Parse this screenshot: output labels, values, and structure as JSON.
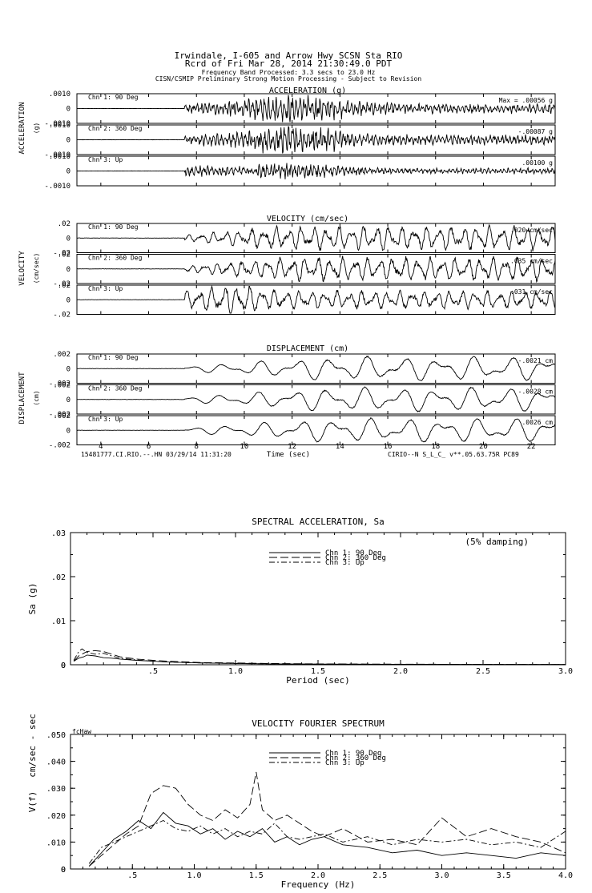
{
  "header": {
    "line1": "Irwindale, I-605 and Arrow Hwy    SCSN Sta RIO",
    "line2": "Rcrd of Fri Mar 28, 2014 21:30:49.0 PDT",
    "line3": "Frequency Band Processed: 3.3 secs to 23.0 Hz",
    "line4": "CISN/CSMIP Preliminary Strong Motion Processing - Subject to Revision"
  },
  "time_axis": {
    "label": "Time (sec)",
    "ticks": [
      "4",
      "6",
      "8",
      "10",
      "12",
      "14",
      "16",
      "18",
      "20",
      "22"
    ],
    "footer_left": "15481777.CI.RIO.--.HN 03/29/14 11:31:20",
    "footer_right": "CIRIO--N  S_L_C_  v**.05.63.75R PC89"
  },
  "chart_data": [
    {
      "type": "line",
      "id": "acceleration",
      "title": "ACCELERATION (g)",
      "side_label": "ACCELERATION",
      "unit_label": "(g)",
      "x_range": [
        3,
        23
      ],
      "channels": [
        {
          "name": "Chn 1: 90 Deg",
          "max_text": "Max =    .00056    g",
          "ticks": [
            ".0010",
            "0",
            "-.0010"
          ],
          "ylim": [
            -0.001,
            0.001
          ],
          "peak": 0.00056
        },
        {
          "name": "Chn 2: 360 Deg",
          "max_text": "-.00087    g",
          "ticks": [
            ".0010",
            "0",
            "-.0010"
          ],
          "ylim": [
            -0.001,
            0.001
          ],
          "peak": 0.00087
        },
        {
          "name": "Chn 3: Up",
          "max_text": ".00100    g",
          "ticks": [
            ".0010",
            "0",
            "-.0010"
          ],
          "ylim": [
            -0.001,
            0.001
          ],
          "peak": 0.001
        }
      ]
    },
    {
      "type": "line",
      "id": "velocity",
      "title": "VELOCITY (cm/sec)",
      "side_label": "VELOCITY",
      "unit_label": "(cm/sec)",
      "x_range": [
        3,
        23
      ],
      "channels": [
        {
          "name": "Chn 1: 90 Deg",
          "max_text": ".020   cm/sec",
          "ticks": [
            ".02",
            "0",
            "-.02"
          ],
          "ylim": [
            -0.02,
            0.02
          ],
          "peak": 0.02
        },
        {
          "name": "Chn 2: 360 Deg",
          "max_text": ".035   cm/sec",
          "ticks": [
            ".02",
            "0",
            "-.02"
          ],
          "ylim": [
            -0.02,
            0.02
          ],
          "peak": 0.035
        },
        {
          "name": "Chn 3: Up",
          "max_text": ".031   cm/sec",
          "ticks": [
            ".02",
            "0",
            "-.02"
          ],
          "ylim": [
            -0.02,
            0.02
          ],
          "peak": 0.031
        }
      ]
    },
    {
      "type": "line",
      "id": "displacement",
      "title": "DISPLACEMENT (cm)",
      "side_label": "DISPLACEMENT",
      "unit_label": "(cm)",
      "x_range": [
        3,
        23
      ],
      "channels": [
        {
          "name": "Chn 1: 90 Deg",
          "max_text": "-.0021    cm",
          "ticks": [
            ".002",
            "0",
            "-.002"
          ],
          "ylim": [
            -0.002,
            0.002
          ],
          "peak": 0.0021
        },
        {
          "name": "Chn 2: 360 Deg",
          "max_text": "-.0028    cm",
          "ticks": [
            ".002",
            "0",
            "-.002"
          ],
          "ylim": [
            -0.002,
            0.002
          ],
          "peak": 0.0028
        },
        {
          "name": "Chn 3: Up",
          "max_text": ".0026    cm",
          "ticks": [
            ".002",
            "0",
            "-.002"
          ],
          "ylim": [
            -0.002,
            0.002
          ],
          "peak": 0.0026
        }
      ]
    },
    {
      "type": "line",
      "id": "spectral",
      "title": "SPECTRAL ACCELERATION, Sa",
      "xlabel": "Period (sec)",
      "ylabel": "Sa (g)",
      "note": "(5% damping)",
      "xlim": [
        0,
        3.0
      ],
      "ylim": [
        0,
        0.03
      ],
      "x_ticks": [
        ".5",
        "1.0",
        "1.5",
        "2.0",
        "2.5",
        "3.0"
      ],
      "y_ticks": [
        ".03",
        ".02",
        ".01",
        "0"
      ],
      "series": [
        {
          "name": "Chn 1: 90 Deg",
          "dash": "",
          "x": [
            0.02,
            0.05,
            0.08,
            0.1,
            0.15,
            0.2,
            0.25,
            0.3,
            0.4,
            0.5,
            0.6,
            0.8,
            1.0,
            1.2,
            1.5,
            2.0,
            2.5,
            3.0
          ],
          "y": [
            0.0008,
            0.0015,
            0.0018,
            0.0022,
            0.002,
            0.0016,
            0.0015,
            0.0013,
            0.001,
            0.0008,
            0.0006,
            0.0004,
            0.0003,
            0.0002,
            0.00015,
            0.0001,
            8e-05,
            6e-05
          ]
        },
        {
          "name": "Chn 2: 360 Deg",
          "dash": "10 4",
          "x": [
            0.02,
            0.05,
            0.08,
            0.1,
            0.15,
            0.2,
            0.25,
            0.3,
            0.4,
            0.5,
            0.6,
            0.8,
            1.0,
            1.2,
            1.5,
            2.0,
            2.5,
            3.0
          ],
          "y": [
            0.0008,
            0.002,
            0.0026,
            0.003,
            0.0032,
            0.003,
            0.0024,
            0.0018,
            0.0013,
            0.001,
            0.0008,
            0.0005,
            0.0004,
            0.0003,
            0.0002,
            0.00012,
            9e-05,
            7e-05
          ]
        },
        {
          "name": "Chn 3: Up",
          "dash": "7 3 2 3",
          "x": [
            0.02,
            0.05,
            0.07,
            0.1,
            0.15,
            0.2,
            0.25,
            0.3,
            0.4,
            0.5,
            0.6,
            0.8,
            1.0,
            1.2,
            1.5,
            2.0,
            2.5,
            3.0
          ],
          "y": [
            0.001,
            0.003,
            0.0036,
            0.0028,
            0.0024,
            0.0026,
            0.002,
            0.0015,
            0.0011,
            0.0008,
            0.0006,
            0.0004,
            0.0003,
            0.0002,
            0.00015,
            0.0001,
            7e-05,
            5e-05
          ]
        }
      ]
    },
    {
      "type": "line",
      "id": "fourier",
      "title": "VELOCITY FOURIER SPECTRUM",
      "xlabel": "Frequency (Hz)",
      "ylabel": "V(f)",
      "ylabel2": "cm/sec - sec",
      "corner_label": "fcHaw",
      "xlim": [
        0,
        4.0
      ],
      "ylim": [
        0,
        0.05
      ],
      "x_ticks": [
        ".5",
        "1.0",
        "1.5",
        "2.0",
        "2.5",
        "3.0",
        "3.5",
        "4.0"
      ],
      "y_ticks": [
        ".050",
        ".040",
        ".030",
        ".020",
        ".010",
        "0"
      ],
      "series": [
        {
          "name": "Chn 1: 90 Deg",
          "dash": "",
          "x": [
            0.15,
            0.25,
            0.35,
            0.45,
            0.55,
            0.65,
            0.75,
            0.85,
            0.95,
            1.05,
            1.15,
            1.25,
            1.35,
            1.45,
            1.55,
            1.65,
            1.75,
            1.85,
            1.95,
            2.05,
            2.2,
            2.4,
            2.6,
            2.8,
            3.0,
            3.2,
            3.4,
            3.6,
            3.8,
            4.0
          ],
          "y": [
            0.001,
            0.006,
            0.011,
            0.014,
            0.018,
            0.015,
            0.021,
            0.017,
            0.016,
            0.013,
            0.015,
            0.011,
            0.014,
            0.012,
            0.015,
            0.01,
            0.012,
            0.009,
            0.011,
            0.012,
            0.009,
            0.008,
            0.006,
            0.007,
            0.005,
            0.006,
            0.005,
            0.004,
            0.006,
            0.005
          ]
        },
        {
          "name": "Chn 2: 360 Deg",
          "dash": "10 4",
          "x": [
            0.15,
            0.25,
            0.35,
            0.45,
            0.55,
            0.65,
            0.75,
            0.85,
            0.95,
            1.05,
            1.15,
            1.25,
            1.35,
            1.45,
            1.5,
            1.55,
            1.65,
            1.75,
            1.85,
            1.95,
            2.05,
            2.2,
            2.4,
            2.6,
            2.8,
            3.0,
            3.2,
            3.4,
            3.6,
            3.8,
            4.0
          ],
          "y": [
            0.001,
            0.005,
            0.009,
            0.013,
            0.016,
            0.028,
            0.031,
            0.03,
            0.024,
            0.02,
            0.018,
            0.022,
            0.019,
            0.024,
            0.036,
            0.022,
            0.018,
            0.02,
            0.017,
            0.014,
            0.012,
            0.015,
            0.01,
            0.011,
            0.009,
            0.019,
            0.012,
            0.015,
            0.012,
            0.01,
            0.006
          ]
        },
        {
          "name": "Chn 3: Up",
          "dash": "7 3 2 3",
          "x": [
            0.15,
            0.25,
            0.35,
            0.45,
            0.55,
            0.65,
            0.75,
            0.85,
            0.95,
            1.05,
            1.15,
            1.25,
            1.35,
            1.45,
            1.55,
            1.65,
            1.75,
            1.85,
            1.95,
            2.05,
            2.2,
            2.4,
            2.6,
            2.8,
            3.0,
            3.2,
            3.4,
            3.6,
            3.8,
            4.0
          ],
          "y": [
            0.002,
            0.008,
            0.01,
            0.012,
            0.014,
            0.016,
            0.018,
            0.015,
            0.014,
            0.016,
            0.013,
            0.015,
            0.012,
            0.014,
            0.013,
            0.017,
            0.012,
            0.011,
            0.012,
            0.013,
            0.01,
            0.012,
            0.009,
            0.011,
            0.01,
            0.011,
            0.009,
            0.01,
            0.008,
            0.014
          ]
        }
      ]
    }
  ]
}
